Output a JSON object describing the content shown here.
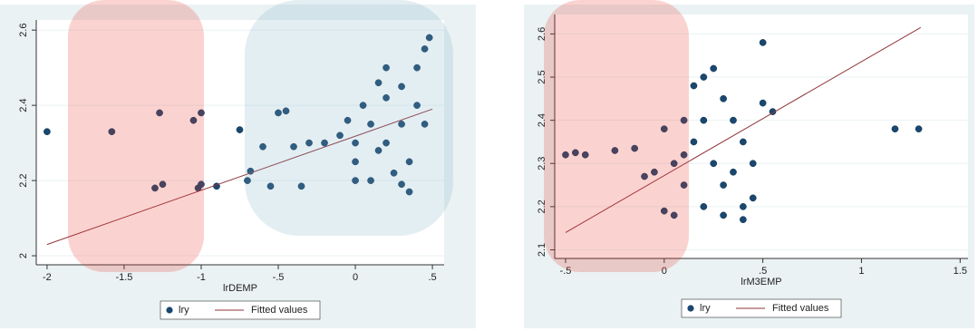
{
  "chart_data": [
    {
      "type": "scatter",
      "x_label": "lrDEMP",
      "grid": true,
      "xlim": [
        -2.07,
        0.576
      ],
      "ylim": [
        1.976,
        2.627
      ],
      "xticks": [
        -2,
        -1.5,
        -1,
        {
          "value": -0.5,
          "label": "-.5"
        },
        0,
        {
          "value": 0.5,
          "label": ".5"
        }
      ],
      "yticks": [
        2,
        2.2,
        2.4,
        2.6
      ],
      "series": [
        {
          "name": "lry",
          "color": "#1a476f",
          "mode": "markers",
          "x": [
            -2,
            -1.58,
            -1.27,
            -1.05,
            -1,
            -1.3,
            -1.25,
            -1.02,
            -1,
            -0.9,
            -0.75,
            -0.7,
            -0.68,
            -0.55,
            -0.5,
            -0.45,
            -0.35,
            -0.4,
            -0.6,
            -0.3,
            -0.2,
            -0.1,
            0,
            0,
            0.05,
            0.1,
            0.1,
            0.15,
            0.2,
            0.2,
            0.25,
            0.3,
            0.3,
            0.35,
            0.35,
            0.4,
            0.4,
            0.45,
            0.48,
            0.45,
            0.3,
            0,
            -0.05,
            0.2,
            0.15
          ],
          "values": [
            2.33,
            2.33,
            2.38,
            2.36,
            2.38,
            2.18,
            2.19,
            2.18,
            2.19,
            2.185,
            2.335,
            2.2,
            2.225,
            2.185,
            2.38,
            2.385,
            2.185,
            2.29,
            2.29,
            2.3,
            2.3,
            2.32,
            2.3,
            2.25,
            2.4,
            2.35,
            2.2,
            2.28,
            2.42,
            2.3,
            2.22,
            2.45,
            2.35,
            2.25,
            2.17,
            2.5,
            2.4,
            2.55,
            2.58,
            2.35,
            2.19,
            2.2,
            2.36,
            2.5,
            2.46
          ]
        },
        {
          "name": "Fitted values",
          "color": "#90353b",
          "mode": "line",
          "x": [
            -2,
            0.5
          ],
          "values": [
            2.03,
            2.39
          ]
        }
      ]
    },
    {
      "type": "scatter",
      "x_label": "lrM3EMP",
      "grid": true,
      "xlim": [
        -0.555,
        1.54
      ],
      "ylim": [
        2.08,
        2.645
      ],
      "xticks": [
        {
          "value": -0.5,
          "label": "-.5"
        },
        0,
        {
          "value": 0.5,
          "label": ".5"
        },
        1,
        1.5
      ],
      "yticks": [
        2.1,
        2.2,
        2.3,
        2.4,
        2.5,
        2.6
      ],
      "series": [
        {
          "name": "lry",
          "color": "#1a476f",
          "mode": "markers",
          "x": [
            -0.5,
            -0.45,
            -0.4,
            -0.25,
            -0.15,
            1.17,
            1.29,
            -0.1,
            -0.05,
            0,
            0.05,
            0.1,
            0.15,
            0.2,
            0.25,
            0.3,
            0.35,
            0.4,
            0.45,
            0.5,
            0.5,
            0.55,
            0.4,
            0.4,
            0.3,
            0.2,
            0.1,
            0.05,
            0.15,
            0.25,
            0.3,
            0.35,
            0.45,
            0,
            0.2,
            0.1
          ],
          "values": [
            2.32,
            2.325,
            2.32,
            2.33,
            2.335,
            2.38,
            2.38,
            2.27,
            2.28,
            2.19,
            2.18,
            2.4,
            2.48,
            2.5,
            2.52,
            2.45,
            2.4,
            2.35,
            2.3,
            2.58,
            2.44,
            2.42,
            2.2,
            2.17,
            2.18,
            2.2,
            2.25,
            2.3,
            2.35,
            2.3,
            2.25,
            2.28,
            2.22,
            2.38,
            2.4,
            2.32
          ]
        },
        {
          "name": "Fitted values",
          "color": "#90353b",
          "mode": "line",
          "x": [
            -0.5,
            1.3
          ],
          "values": [
            2.14,
            2.615
          ]
        }
      ]
    }
  ]
}
